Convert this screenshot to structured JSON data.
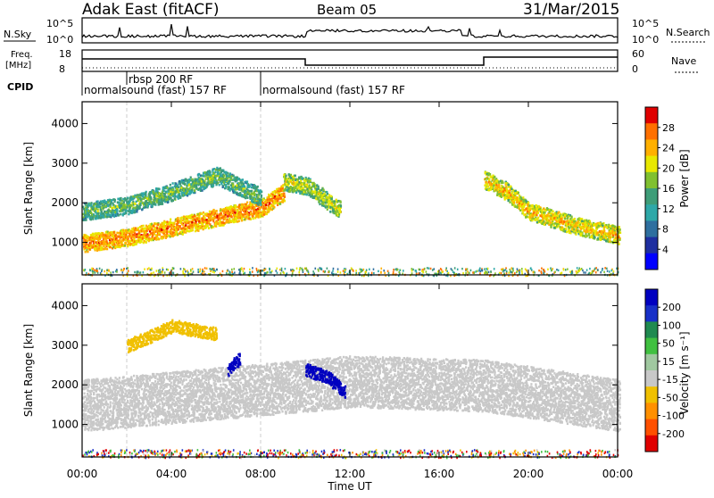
{
  "header": {
    "station": "Adak East (fitACF)",
    "beam": "Beam 05",
    "date": "31/Mar/2015"
  },
  "nsky_panel": {
    "left_label": "N.Sky",
    "right_label": "N.Search",
    "ticks_left": [
      "10^5",
      "10^0"
    ],
    "ticks_right": [
      "10^5",
      "10^0"
    ]
  },
  "freq_panel": {
    "left_label": "Freq.",
    "left_unit": "[MHz]",
    "right_label": "Nave",
    "ticks_left": [
      "18",
      "8"
    ],
    "ticks_right": [
      "60",
      "0"
    ]
  },
  "cpid": {
    "label": "CPID",
    "segments": [
      {
        "text": "normalsound (fast) 157 RF",
        "start_hour": 0.0,
        "end_hour": 8.0
      },
      {
        "text": "rbsp 200 RF",
        "start_hour": 2.0,
        "end_hour": 8.0
      },
      {
        "text": "normalsound (fast) 157 RF",
        "start_hour": 8.0,
        "end_hour": 24.0
      }
    ]
  },
  "chart_data": [
    {
      "type": "heatmap",
      "title": "",
      "ylabel": "Slant Range [km]",
      "xlabel": "Time UT",
      "x_ticks": [
        "00:00",
        "04:00",
        "08:00",
        "12:00",
        "16:00",
        "20:00",
        "00:00"
      ],
      "x_range_hours": [
        0,
        24
      ],
      "y_ticks": [
        1000,
        2000,
        3000,
        4000
      ],
      "ylim": [
        180,
        4550
      ],
      "colorbar": {
        "label": "Power [dB]",
        "ticks": [
          28,
          24,
          20,
          16,
          12,
          8,
          4
        ],
        "colors": [
          "#e00000",
          "#ff7000",
          "#ffb000",
          "#e8e800",
          "#80c030",
          "#3e9d78",
          "#2ea8a8",
          "#2f6f9f",
          "#1f2fa0",
          "#0000ff"
        ]
      },
      "features": [
        {
          "name": "main band",
          "times_hours": [
            0,
            2,
            4,
            6,
            8,
            9
          ],
          "range_km": [
            1000,
            1150,
            1400,
            1650,
            1900,
            2300
          ],
          "power_db": 24
        },
        {
          "name": "upper band",
          "times_hours": [
            0,
            2,
            4,
            6,
            8
          ],
          "range_km": [
            1800,
            1950,
            2300,
            2700,
            2150
          ],
          "power_db": 12
        },
        {
          "name": "midday echoes",
          "times_hours": [
            9,
            10,
            11,
            11.5
          ],
          "range_km": [
            2550,
            2450,
            2050,
            1850
          ],
          "power_db": 16
        },
        {
          "name": "evening band",
          "times_hours": [
            18,
            19,
            20,
            22,
            24
          ],
          "range_km": [
            2600,
            2300,
            1800,
            1450,
            1200
          ],
          "power_db": 20
        }
      ]
    },
    {
      "type": "heatmap",
      "title": "",
      "ylabel": "Slant Range [km]",
      "xlabel": "Time UT",
      "x_ticks": [
        "00:00",
        "04:00",
        "08:00",
        "12:00",
        "16:00",
        "20:00",
        "00:00"
      ],
      "x_range_hours": [
        0,
        24
      ],
      "y_ticks": [
        1000,
        2000,
        3000,
        4000
      ],
      "ylim": [
        180,
        4550
      ],
      "colorbar": {
        "label": "Velocity [m s⁻¹]",
        "ticks": [
          200,
          100,
          50,
          15,
          -15,
          -50,
          -100,
          -200
        ],
        "colors": [
          "#0000c0",
          "#1830c8",
          "#208a50",
          "#40c040",
          "#a0c8a0",
          "#c8c8c8",
          "#f0c000",
          "#ff9000",
          "#ff5000",
          "#e00000"
        ]
      },
      "features": [
        {
          "name": "ground scatter",
          "times_hours": [
            0,
            4,
            8,
            12,
            18,
            24
          ],
          "range_km": [
            1500,
            1700,
            1900,
            2100,
            2000,
            1500
          ],
          "velocity": 0
        },
        {
          "name": "blue patch A",
          "times_hours": [
            6.5,
            7.0
          ],
          "range_km": [
            2400,
            2700
          ],
          "velocity": 200
        },
        {
          "name": "blue patch B",
          "times_hours": [
            10,
            11,
            11.7
          ],
          "range_km": [
            2400,
            2200,
            1850
          ],
          "velocity": 200
        },
        {
          "name": "orange upper",
          "times_hours": [
            2,
            4,
            6
          ],
          "range_km": [
            3000,
            3500,
            3300
          ],
          "velocity": -50
        }
      ]
    }
  ]
}
